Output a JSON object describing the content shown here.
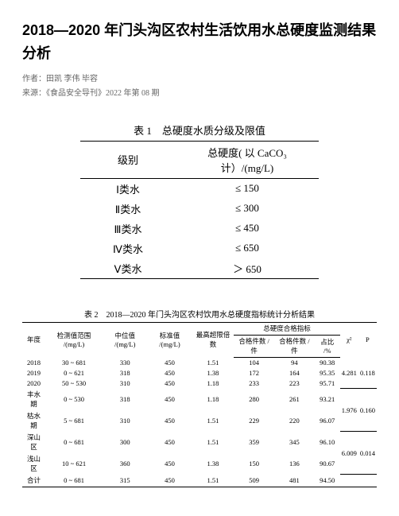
{
  "title": "2018—2020 年门头沟区农村生活饮用水总硬度监测结果分析",
  "author_line": "作者：田凯 李伟 毕容",
  "source_line": "来源：《食品安全导刊》2022 年第 08 期",
  "table1": {
    "caption": "表 1　总硬度水质分级及限值",
    "headers": [
      "级别",
      "总硬度( 以 CaCO₃ 计）/(mg/L)"
    ],
    "rows": [
      [
        "Ⅰ类水",
        "≤ 150"
      ],
      [
        "Ⅱ类水",
        "≤ 300"
      ],
      [
        "Ⅲ类水",
        "≤ 450"
      ],
      [
        "Ⅳ类水",
        "≤ 650"
      ],
      [
        "Ⅴ类水",
        "＞ 650"
      ]
    ]
  },
  "table2": {
    "caption": "表 2　2018—2020 年门头沟区农村饮用水总硬度指标统计分析结果",
    "group_header": "总硬度合格指标",
    "headers_row1": [
      "年度",
      "检测值范围 /(mg/L)",
      "中位值 /(mg/L)",
      "标准值 /(mg/L)",
      "最高超限倍数"
    ],
    "headers_sub": [
      "合格件数 / 件",
      "合格件数 / 件",
      "占比 /%"
    ],
    "chi_label": "χ²",
    "p_label": "P",
    "rows": [
      {
        "y": "2018",
        "r": "30 ~ 681",
        "med": "330",
        "std": "450",
        "max": "1.51",
        "n": "104",
        "ok": "94",
        "pct": "90.38",
        "chi": "",
        "p": ""
      },
      {
        "y": "2019",
        "r": "0 ~ 621",
        "med": "318",
        "std": "450",
        "max": "1.38",
        "n": "172",
        "ok": "164",
        "pct": "95.35",
        "chi": "4.281",
        "p": "0.118"
      },
      {
        "y": "2020",
        "r": "50 ~ 530",
        "med": "310",
        "std": "450",
        "max": "1.18",
        "n": "233",
        "ok": "223",
        "pct": "95.71",
        "chi": "",
        "p": ""
      },
      {
        "y": "丰水期",
        "r": "0 ~ 530",
        "med": "318",
        "std": "450",
        "max": "1.18",
        "n": "280",
        "ok": "261",
        "pct": "93.21",
        "chi": "1.976",
        "p": "0.160"
      },
      {
        "y": "枯水期",
        "r": "5 ~ 681",
        "med": "310",
        "std": "450",
        "max": "1.51",
        "n": "229",
        "ok": "220",
        "pct": "96.07",
        "chi": "",
        "p": ""
      },
      {
        "y": "深山区",
        "r": "0 ~ 681",
        "med": "300",
        "std": "450",
        "max": "1.51",
        "n": "359",
        "ok": "345",
        "pct": "96.10",
        "chi": "6.009",
        "p": "0.014"
      },
      {
        "y": "浅山区",
        "r": "10 ~ 621",
        "med": "360",
        "std": "450",
        "max": "1.38",
        "n": "150",
        "ok": "136",
        "pct": "90.67",
        "chi": "",
        "p": ""
      },
      {
        "y": "合计",
        "r": "0 ~ 681",
        "med": "315",
        "std": "450",
        "max": "1.51",
        "n": "509",
        "ok": "481",
        "pct": "94.50",
        "chi": "",
        "p": ""
      }
    ],
    "chi_spans": [
      {
        "start": 0,
        "span": 3,
        "chi": "4.281",
        "p": "0.118"
      },
      {
        "start": 3,
        "span": 2,
        "chi": "1.976",
        "p": "0.160"
      },
      {
        "start": 5,
        "span": 2,
        "chi": "6.009",
        "p": "0.014"
      },
      {
        "start": 7,
        "span": 1,
        "chi": "",
        "p": ""
      }
    ]
  }
}
